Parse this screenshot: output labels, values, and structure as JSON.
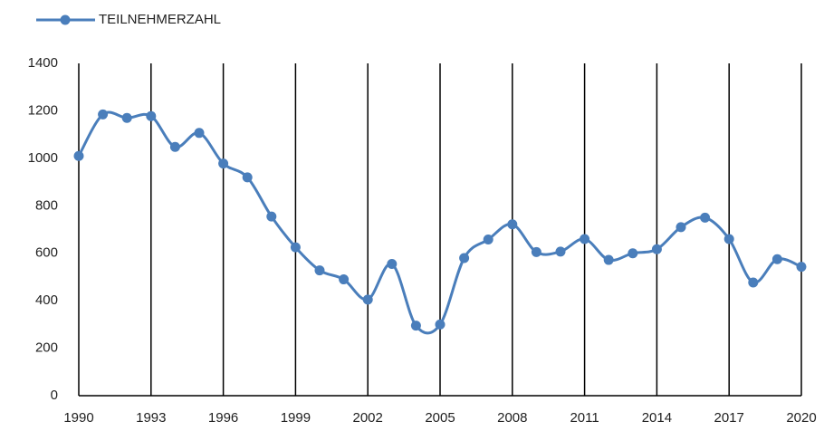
{
  "chart_data": {
    "type": "line",
    "x": [
      1990,
      1991,
      1992,
      1993,
      1994,
      1995,
      1996,
      1997,
      1998,
      1999,
      2000,
      2001,
      2002,
      2003,
      2004,
      2005,
      2006,
      2007,
      2008,
      2009,
      2010,
      2011,
      2012,
      2013,
      2014,
      2015,
      2016,
      2017,
      2018,
      2019,
      2020
    ],
    "series": [
      {
        "name": "TEILNEHMERZAHL",
        "color": "#4a7ebb",
        "values": [
          1010,
          1185,
          1170,
          1178,
          1048,
          1107,
          978,
          920,
          755,
          625,
          528,
          490,
          405,
          555,
          295,
          300,
          580,
          658,
          722,
          605,
          607,
          660,
          572,
          600,
          617,
          710,
          750,
          660,
          477,
          575,
          543
        ]
      }
    ],
    "xlim": [
      1990,
      2020
    ],
    "xticks": [
      1990,
      1993,
      1996,
      1999,
      2002,
      2005,
      2008,
      2011,
      2014,
      2017,
      2020
    ],
    "ylim": [
      0,
      1400
    ],
    "yticks": [
      0,
      200,
      400,
      600,
      800,
      1000,
      1200,
      1400
    ],
    "grid": "x",
    "smooth": true,
    "legend": "top-left"
  }
}
